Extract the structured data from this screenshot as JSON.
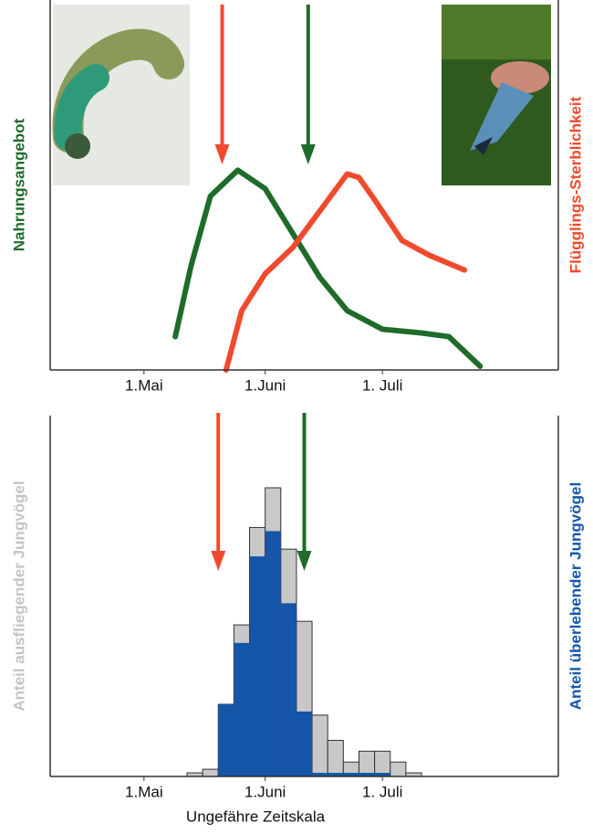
{
  "chart_data": [
    {
      "type": "line",
      "left_label": "Nahrungsangebot",
      "left_color": "#1f6b2a",
      "right_label": "Flügglings-Sterblichkeit",
      "right_color": "#f04a2e",
      "xlim": [
        -24,
        106
      ],
      "ylim": [
        0,
        100
      ],
      "xticks": [
        {
          "value": 0,
          "label": "1.Mai"
        },
        {
          "value": 31,
          "label": "1.Juni"
        },
        {
          "value": 61,
          "label": "1. Juli"
        }
      ],
      "markers": [
        {
          "color": "#f04a2e",
          "x": 20
        },
        {
          "color": "#1f6b2a",
          "x": 42
        }
      ],
      "series": [
        {
          "name": "Nahrungsangebot",
          "color": "#1f6b2a",
          "x": [
            8,
            12,
            17,
            24,
            31,
            38,
            45,
            52,
            61,
            71,
            78,
            86
          ],
          "values": [
            9,
            28,
            47,
            54,
            49,
            37,
            25,
            16,
            11,
            10,
            9,
            1
          ]
        },
        {
          "name": "Flügglings-Sterblichkeit",
          "color": "#f04a2e",
          "x": [
            21,
            25,
            31,
            38,
            45,
            52,
            55,
            59,
            66,
            73,
            82
          ],
          "values": [
            0,
            16,
            26,
            33,
            43,
            53,
            52,
            46,
            35,
            31,
            27
          ]
        }
      ]
    },
    {
      "type": "histogram",
      "left_label": "Anteil ausfliegender Jungvögel",
      "left_color": "#c4c4c4",
      "right_label": "Anteil überlebender Jungvögel",
      "right_color": "#1556a8",
      "xlabel": "Ungefähre Zeitskala",
      "xlim": [
        -24,
        106
      ],
      "ylim": [
        0,
        100
      ],
      "xticks": [
        {
          "value": 0,
          "label": "1.Mai"
        },
        {
          "value": 31,
          "label": "1.Juni"
        },
        {
          "value": 61,
          "label": "1. Juli"
        }
      ],
      "markers": [
        {
          "color": "#f04a2e",
          "x": 19
        },
        {
          "color": "#1f6b2a",
          "x": 41
        }
      ],
      "bins": [
        7,
        11,
        15,
        19,
        23,
        27,
        31,
        35,
        39,
        43,
        47,
        51,
        55,
        59,
        63,
        67,
        71
      ],
      "series": [
        {
          "name": "Anteil ausfliegender Jungvögel",
          "color": "#c8c8c8",
          "values": [
            0,
            1,
            2,
            20,
            42,
            69,
            80,
            63,
            43,
            17,
            10,
            4,
            7,
            7,
            4,
            1
          ]
        },
        {
          "name": "Anteil überlebender Jungvögel",
          "color": "#1556a8",
          "values": [
            0,
            0,
            0,
            20,
            37,
            61,
            68,
            48,
            18,
            1,
            1,
            1,
            1,
            1,
            0,
            0
          ]
        }
      ]
    }
  ]
}
